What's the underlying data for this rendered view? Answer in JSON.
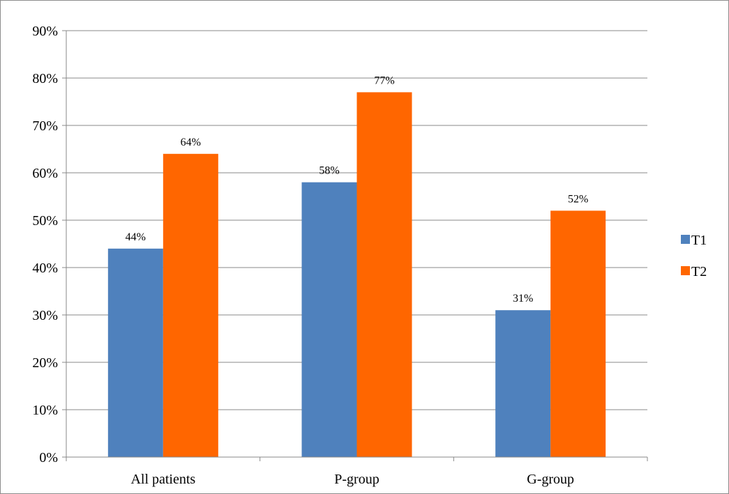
{
  "chart_data": {
    "type": "bar",
    "categories": [
      "All patients",
      "P-group",
      "G-group"
    ],
    "series": [
      {
        "name": "T1",
        "values": [
          44,
          58,
          31
        ],
        "labels": [
          "44%",
          "58%",
          "31%"
        ],
        "color": "#4f81bd"
      },
      {
        "name": "T2",
        "values": [
          64,
          77,
          52
        ],
        "labels": [
          "64%",
          "77%",
          "52%"
        ],
        "color": "#ff6600"
      }
    ],
    "title": "",
    "xlabel": "",
    "ylabel": "",
    "ylim": [
      0,
      90
    ],
    "yticks": [
      0,
      10,
      20,
      30,
      40,
      50,
      60,
      70,
      80,
      90
    ],
    "ytick_labels": [
      "0%",
      "10%",
      "20%",
      "30%",
      "40%",
      "50%",
      "60%",
      "70%",
      "80%",
      "90%"
    ],
    "grid": true,
    "legend_position": "right"
  }
}
